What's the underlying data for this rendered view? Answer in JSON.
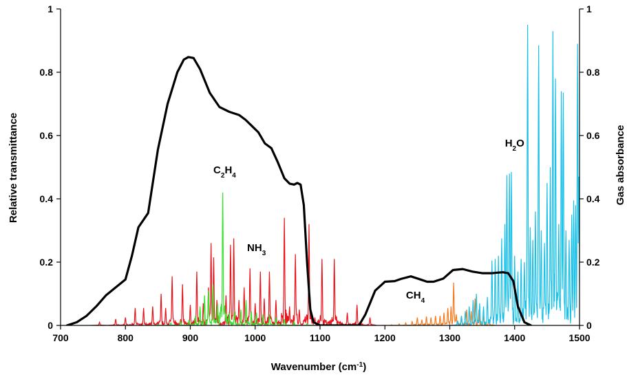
{
  "chart_data": {
    "type": "line",
    "title": "",
    "xlabel": {
      "text": "Wavenumber (cm",
      "sup": "-1",
      "suffix": ")"
    },
    "ylabel_left": "Relative transmittance",
    "ylabel_right": "Gas absorbance",
    "xlim": [
      700,
      1500
    ],
    "ylim_left": [
      0,
      1
    ],
    "ylim_right": [
      0,
      1
    ],
    "x_ticks": [
      700,
      800,
      900,
      1000,
      1100,
      1200,
      1300,
      1400,
      1500
    ],
    "y_ticks_left": [
      0,
      0.2,
      0.4,
      0.6,
      0.8,
      1
    ],
    "y_ticks_right": [
      0,
      0.2,
      0.4,
      0.6,
      0.8,
      1
    ],
    "y_tick_labels": [
      "0",
      "0.2",
      "0.4",
      "0.6",
      "0.8",
      "1"
    ],
    "grid": false,
    "legend": "none",
    "annotations": [
      {
        "id": "c2h4",
        "parts": [
          [
            "C",
            ""
          ],
          [
            "2",
            "sub"
          ],
          [
            "H",
            ""
          ],
          [
            "4",
            "sub"
          ]
        ],
        "x": 953,
        "y": 0.48
      },
      {
        "id": "nh3",
        "parts": [
          [
            "NH",
            ""
          ],
          [
            "3",
            "sub"
          ]
        ],
        "x": 1002,
        "y": 0.235
      },
      {
        "id": "ch4",
        "parts": [
          [
            "CH",
            ""
          ],
          [
            "4",
            "sub"
          ]
        ],
        "x": 1247,
        "y": 0.085
      },
      {
        "id": "h2o",
        "parts": [
          [
            "H",
            ""
          ],
          [
            "2",
            "sub"
          ],
          [
            "O",
            ""
          ]
        ],
        "x": 1400,
        "y": 0.565
      }
    ],
    "series": [
      {
        "kind": "transmittance",
        "axis": "left",
        "color": "#000000",
        "x": [
          710,
          725,
          740,
          755,
          770,
          785,
          800,
          810,
          820,
          835,
          850,
          865,
          880,
          890,
          897,
          905,
          915,
          930,
          945,
          960,
          975,
          985,
          995,
          1005,
          1015,
          1025,
          1035,
          1045,
          1053,
          1060,
          1065,
          1070,
          1075,
          1080,
          1085,
          1090,
          1100,
          1110,
          1130,
          1150,
          1160,
          1170,
          1185,
          1200,
          1215,
          1225,
          1240,
          1255,
          1265,
          1275,
          1290,
          1305,
          1320,
          1335,
          1350,
          1365,
          1375,
          1382,
          1390,
          1398,
          1405,
          1415,
          1425
        ],
        "y": [
          0.0,
          0.01,
          0.03,
          0.06,
          0.095,
          0.12,
          0.145,
          0.22,
          0.31,
          0.355,
          0.555,
          0.7,
          0.8,
          0.84,
          0.848,
          0.845,
          0.81,
          0.735,
          0.69,
          0.675,
          0.665,
          0.65,
          0.63,
          0.61,
          0.575,
          0.56,
          0.515,
          0.465,
          0.448,
          0.445,
          0.45,
          0.445,
          0.38,
          0.2,
          0.05,
          0.01,
          0.0,
          0.0,
          0.0,
          0.0,
          0.0,
          0.035,
          0.11,
          0.138,
          0.14,
          0.147,
          0.155,
          0.145,
          0.138,
          0.138,
          0.148,
          0.175,
          0.178,
          0.17,
          0.165,
          0.165,
          0.167,
          0.168,
          0.165,
          0.14,
          0.06,
          0.01,
          0.0
        ]
      },
      {
        "kind": "absorbance",
        "gas": "NH3",
        "axis": "right",
        "color": "#e8141b",
        "peaks": [
          [
            760,
            0.01
          ],
          [
            785,
            0.02
          ],
          [
            800,
            0.025
          ],
          [
            815,
            0.055
          ],
          [
            828,
            0.055
          ],
          [
            842,
            0.06
          ],
          [
            855,
            0.1
          ],
          [
            862,
            0.055
          ],
          [
            872,
            0.155
          ],
          [
            888,
            0.13
          ],
          [
            900,
            0.065
          ],
          [
            910,
            0.17
          ],
          [
            920,
            0.07
          ],
          [
            928,
            0.12
          ],
          [
            932,
            0.26
          ],
          [
            936,
            0.215
          ],
          [
            941,
            0.08
          ],
          [
            955,
            0.095
          ],
          [
            962,
            0.255
          ],
          [
            967,
            0.275
          ],
          [
            975,
            0.08
          ],
          [
            983,
            0.12
          ],
          [
            992,
            0.18
          ],
          [
            1000,
            0.07
          ],
          [
            1008,
            0.17
          ],
          [
            1014,
            0.085
          ],
          [
            1022,
            0.17
          ],
          [
            1032,
            0.08
          ],
          [
            1045,
            0.34
          ],
          [
            1053,
            0.06
          ],
          [
            1062,
            0.225
          ],
          [
            1068,
            0.05
          ],
          [
            1083,
            0.32
          ],
          [
            1092,
            0.025
          ],
          [
            1103,
            0.21
          ],
          [
            1112,
            0.01
          ],
          [
            1122,
            0.21
          ],
          [
            1142,
            0.04
          ],
          [
            1157,
            0.065
          ],
          [
            1177,
            0.025
          ]
        ]
      },
      {
        "kind": "absorbance",
        "gas": "C2H4",
        "axis": "right",
        "color": "#33e42a",
        "peaks": [
          [
            850,
            0.004
          ],
          [
            870,
            0.008
          ],
          [
            885,
            0.012
          ],
          [
            898,
            0.018
          ],
          [
            908,
            0.03
          ],
          [
            915,
            0.06
          ],
          [
            922,
            0.095
          ],
          [
            928,
            0.11
          ],
          [
            935,
            0.13
          ],
          [
            942,
            0.07
          ],
          [
            947,
            0.06
          ],
          [
            950,
            0.42
          ],
          [
            953,
            0.05
          ],
          [
            960,
            0.04
          ],
          [
            968,
            0.045
          ],
          [
            978,
            0.05
          ],
          [
            986,
            0.08
          ],
          [
            994,
            0.045
          ],
          [
            1002,
            0.04
          ],
          [
            1012,
            0.035
          ],
          [
            1022,
            0.035
          ],
          [
            1032,
            0.025
          ],
          [
            1045,
            0.02
          ],
          [
            1060,
            0.012
          ],
          [
            1080,
            0.006
          ],
          [
            1100,
            0.002
          ]
        ]
      },
      {
        "kind": "absorbance",
        "gas": "CH4",
        "axis": "right",
        "color": "#f47a1d",
        "peaks": [
          [
            1210,
            0.002
          ],
          [
            1222,
            0.005
          ],
          [
            1232,
            0.008
          ],
          [
            1242,
            0.012
          ],
          [
            1250,
            0.025
          ],
          [
            1257,
            0.018
          ],
          [
            1264,
            0.028
          ],
          [
            1271,
            0.025
          ],
          [
            1278,
            0.03
          ],
          [
            1285,
            0.03
          ],
          [
            1291,
            0.04
          ],
          [
            1297,
            0.055
          ],
          [
            1302,
            0.06
          ],
          [
            1306,
            0.135
          ],
          [
            1310,
            0.035
          ],
          [
            1318,
            0.03
          ],
          [
            1326,
            0.05
          ],
          [
            1333,
            0.045
          ],
          [
            1339,
            0.085
          ],
          [
            1345,
            0.05
          ],
          [
            1352,
            0.03
          ],
          [
            1360,
            0.02
          ]
        ]
      },
      {
        "kind": "absorbance",
        "gas": "H2O",
        "axis": "right",
        "color": "#19c0e8",
        "peaks": [
          [
            1312,
            0.015
          ],
          [
            1318,
            0.03
          ],
          [
            1324,
            0.045
          ],
          [
            1330,
            0.06
          ],
          [
            1336,
            0.08
          ],
          [
            1341,
            0.1
          ],
          [
            1346,
            0.07
          ],
          [
            1352,
            0.06
          ],
          [
            1358,
            0.09
          ],
          [
            1365,
            0.205
          ],
          [
            1370,
            0.21
          ],
          [
            1375,
            0.22
          ],
          [
            1380,
            0.275
          ],
          [
            1385,
            0.32
          ],
          [
            1388,
            0.475
          ],
          [
            1392,
            0.48
          ],
          [
            1395,
            0.485
          ],
          [
            1400,
            0.22
          ],
          [
            1405,
            0.17
          ],
          [
            1410,
            0.21
          ],
          [
            1415,
            0.2
          ],
          [
            1420,
            0.95
          ],
          [
            1424,
            0.31
          ],
          [
            1428,
            0.27
          ],
          [
            1432,
            0.36
          ],
          [
            1437,
            0.885
          ],
          [
            1441,
            0.3
          ],
          [
            1446,
            0.26
          ],
          [
            1450,
            0.45
          ],
          [
            1455,
            0.5
          ],
          [
            1459,
            0.93
          ],
          [
            1463,
            0.78
          ],
          [
            1468,
            0.32
          ],
          [
            1472,
            0.74
          ],
          [
            1475,
            0.735
          ],
          [
            1479,
            0.3
          ],
          [
            1484,
            0.27
          ],
          [
            1488,
            0.35
          ],
          [
            1491,
            0.395
          ],
          [
            1494,
            0.38
          ],
          [
            1497,
            0.89
          ],
          [
            1499,
            0.47
          ]
        ]
      }
    ]
  }
}
